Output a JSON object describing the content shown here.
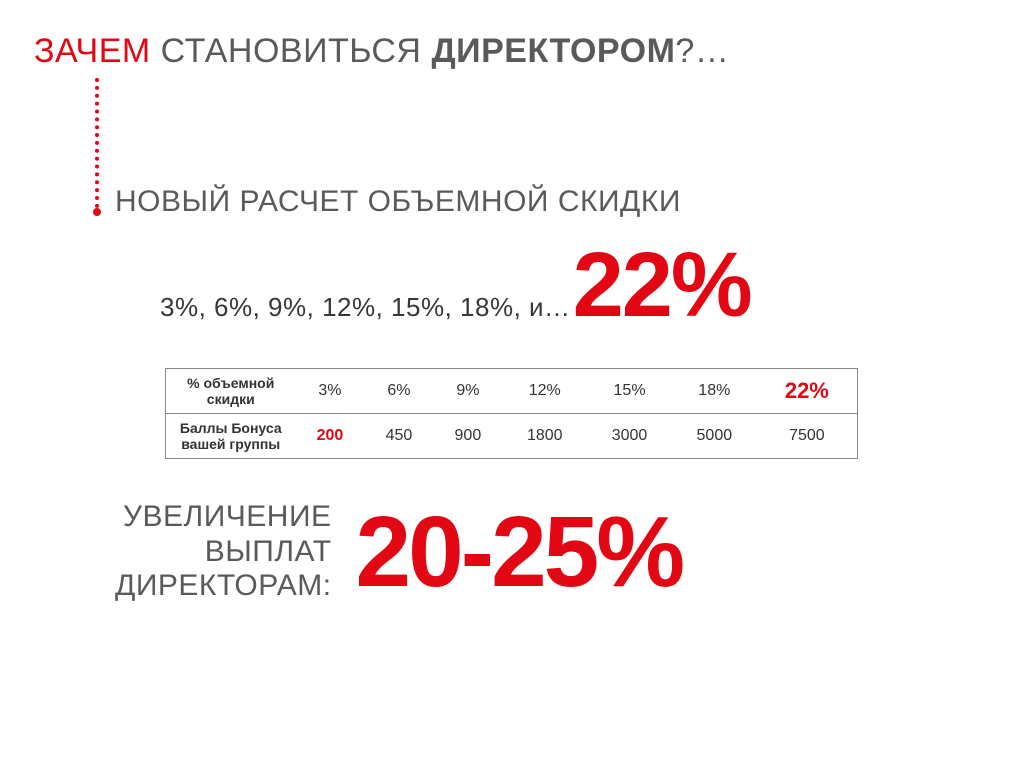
{
  "colors": {
    "accent": "#e30613",
    "text_main": "#5a5a5a",
    "text_dark": "#383838",
    "table_border": "#888888",
    "bg": "#ffffff"
  },
  "title": {
    "word1": "ЗАЧЕМ",
    "word2": "СТАНОВИТЬСЯ",
    "word3": "ДИРЕКТОРОМ",
    "suffix": "?…",
    "fontsize": 34
  },
  "subtitle": {
    "text": "НОВЫЙ РАСЧЕТ ОБЪЕМНОЙ СКИДКИ",
    "fontsize": 30
  },
  "percent_list": {
    "text": "3%, 6%, 9%, 12%, 15%, 18%, и…",
    "fontsize": 26,
    "highlight_value": "22%",
    "highlight_fontsize": 92
  },
  "table": {
    "row1_label": "% объемной скидки",
    "row2_label": "Баллы Бонуса вашей группы",
    "cols": [
      {
        "pct": "3%",
        "pts": "200",
        "pts_hl": true
      },
      {
        "pct": "6%",
        "pts": "450"
      },
      {
        "pct": "9%",
        "pts": "900"
      },
      {
        "pct": "12%",
        "pts": "1800"
      },
      {
        "pct": "15%",
        "pts": "3000"
      },
      {
        "pct": "18%",
        "pts": "5000"
      },
      {
        "pct": "22%",
        "pts": "7500",
        "pct_hl": true
      }
    ],
    "fontsize": 16,
    "label_fontsize": 14
  },
  "payout": {
    "label_line1": "УВЕЛИЧЕНИЕ",
    "label_line2": "ВЫПЛАТ",
    "label_line3": "ДИРЕКТОРАМ:",
    "label_fontsize": 30,
    "value": "20-25%",
    "value_fontsize": 100
  }
}
